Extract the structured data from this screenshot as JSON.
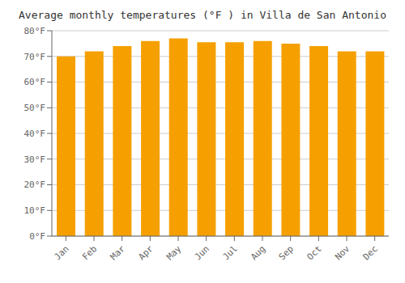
{
  "chart_data": {
    "type": "bar",
    "title": "Average monthly temperatures (°F ) in Villa de San Antonio",
    "categories": [
      "Jan",
      "Feb",
      "Mar",
      "Apr",
      "May",
      "Jun",
      "Jul",
      "Aug",
      "Sep",
      "Oct",
      "Nov",
      "Dec"
    ],
    "values": [
      70,
      72,
      74,
      76,
      77,
      75.5,
      75.5,
      76,
      75,
      74,
      72,
      72
    ],
    "color": "#F5A000",
    "ylim": [
      0,
      80
    ],
    "yticks": [
      {
        "value": 0,
        "label": "0°F"
      },
      {
        "value": 10,
        "label": "10°F"
      },
      {
        "value": 20,
        "label": "20°F"
      },
      {
        "value": 30,
        "label": "30°F"
      },
      {
        "value": 40,
        "label": "40°F"
      },
      {
        "value": 50,
        "label": "50°F"
      },
      {
        "value": 60,
        "label": "60°F"
      },
      {
        "value": 70,
        "label": "70°F"
      },
      {
        "value": 80,
        "label": "80°F"
      }
    ],
    "grid": true
  }
}
